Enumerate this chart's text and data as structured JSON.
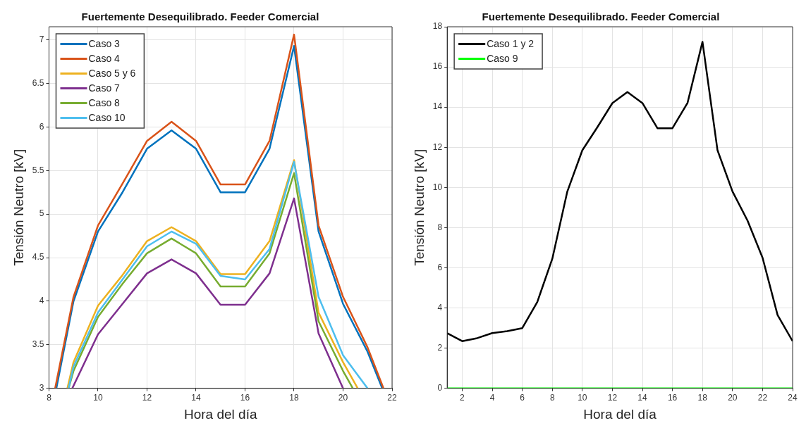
{
  "chart_data": [
    {
      "type": "line",
      "title": "Fuertemente Desequilibrado. Feeder Comercial",
      "xlabel": "Hora del día",
      "ylabel": "Tensión Neutro [kV]",
      "xlim": [
        8,
        22
      ],
      "xticks": [
        8,
        10,
        12,
        14,
        16,
        18,
        20,
        22
      ],
      "ylim": [
        3,
        7.15
      ],
      "yticks": [
        3,
        3.5,
        4,
        4.5,
        5,
        5.5,
        6,
        6.5,
        7
      ],
      "grid": true,
      "legend": "top left",
      "line_style": "solid",
      "marker": "none",
      "series": [
        {
          "name": "Caso 3",
          "color": "#0072bd",
          "x": [
            8.3,
            9,
            10,
            11,
            12,
            13,
            14,
            15,
            16,
            17,
            18,
            19,
            20,
            21,
            21.6
          ],
          "values": [
            3,
            4.0,
            4.8,
            5.25,
            5.75,
            5.96,
            5.75,
            5.25,
            5.25,
            5.75,
            6.93,
            4.8,
            3.97,
            3.42,
            3
          ]
        },
        {
          "name": "Caso 4",
          "color": "#d95319",
          "x": [
            8.25,
            9,
            10,
            11,
            12,
            13,
            14,
            15,
            16,
            17,
            18,
            19,
            20,
            21,
            21.65
          ],
          "values": [
            3,
            4.05,
            4.87,
            5.35,
            5.84,
            6.06,
            5.84,
            5.34,
            5.34,
            5.84,
            7.06,
            4.87,
            4.05,
            3.47,
            3
          ]
        },
        {
          "name": "Caso 5 y 6",
          "color": "#edb120",
          "x": [
            8.75,
            9,
            10,
            11,
            12,
            13,
            14,
            15,
            16,
            17,
            18,
            19,
            20,
            20.6
          ],
          "values": [
            3,
            3.3,
            3.95,
            4.3,
            4.69,
            4.85,
            4.69,
            4.31,
            4.31,
            4.69,
            5.62,
            3.87,
            3.3,
            3
          ]
        },
        {
          "name": "Caso 7",
          "color": "#7e2f8e",
          "x": [
            8.95,
            10,
            11,
            12,
            13,
            14,
            15,
            16,
            17,
            18,
            19,
            20
          ],
          "values": [
            3,
            3.62,
            3.97,
            4.32,
            4.48,
            4.32,
            3.96,
            3.96,
            4.32,
            5.18,
            3.63,
            3
          ]
        },
        {
          "name": "Caso 8",
          "color": "#77ac30",
          "x": [
            8.8,
            9,
            10,
            11,
            12,
            13,
            14,
            15,
            16,
            17,
            18,
            19,
            20,
            20.4
          ],
          "values": [
            3,
            3.2,
            3.82,
            4.2,
            4.55,
            4.72,
            4.55,
            4.17,
            4.17,
            4.55,
            5.47,
            3.77,
            3.2,
            3
          ]
        },
        {
          "name": "Caso 10",
          "color": "#4dbeee",
          "x": [
            8.8,
            9,
            10,
            11,
            12,
            13,
            14,
            15,
            16,
            17,
            18,
            19,
            20,
            21
          ],
          "values": [
            3,
            3.25,
            3.87,
            4.25,
            4.63,
            4.8,
            4.66,
            4.29,
            4.25,
            4.6,
            5.6,
            4.05,
            3.38,
            3
          ]
        }
      ]
    },
    {
      "type": "line",
      "title": "Fuertemente Desequilibrado. Feeder Comercial",
      "xlabel": "Hora del día",
      "ylabel": "Tensión Neutro [kV]",
      "xlim": [
        1,
        24
      ],
      "xticks": [
        2,
        4,
        6,
        8,
        10,
        12,
        14,
        16,
        18,
        20,
        22,
        24
      ],
      "ylim": [
        0,
        18
      ],
      "yticks": [
        0,
        2,
        4,
        6,
        8,
        10,
        12,
        14,
        16,
        18
      ],
      "grid": true,
      "legend": "top left",
      "line_style": "solid",
      "marker": "none",
      "series": [
        {
          "name": "Caso 1 y 2",
          "color": "#000000",
          "x": [
            1,
            2,
            3,
            4,
            5,
            6,
            7,
            8,
            9,
            10,
            11,
            12,
            13,
            14,
            15,
            16,
            17,
            18,
            19,
            20,
            21,
            22,
            23,
            24
          ],
          "values": [
            2.75,
            2.35,
            2.5,
            2.75,
            2.85,
            3.0,
            4.3,
            6.45,
            9.8,
            11.85,
            13.0,
            14.2,
            14.75,
            14.2,
            12.95,
            12.95,
            14.2,
            17.25,
            11.85,
            9.8,
            8.35,
            6.5,
            3.65,
            2.35
          ]
        },
        {
          "name": "Caso 9",
          "color": "#00ff00",
          "x": [
            1,
            2,
            3,
            4,
            5,
            6,
            7,
            8,
            9,
            10,
            11,
            12,
            13,
            14,
            15,
            16,
            17,
            18,
            19,
            20,
            21,
            22,
            23,
            24
          ],
          "values": [
            0,
            0,
            0,
            0,
            0,
            0,
            0,
            0,
            0,
            0,
            0,
            0,
            0,
            0,
            0,
            0,
            0,
            0,
            0,
            0,
            0,
            0,
            0,
            0
          ]
        }
      ]
    }
  ]
}
